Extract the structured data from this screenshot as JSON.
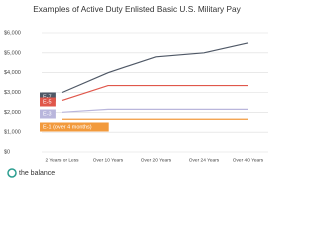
{
  "chart_data": {
    "type": "line",
    "title": "Examples of Active Duty Enlisted Basic U.S. Military Pay",
    "categories": [
      "2 Years or Less",
      "Over 10 Years",
      "Over 20 Years",
      "Over 24 Years",
      "Over 40 Years"
    ],
    "series": [
      {
        "name": "E-7",
        "color": "#4f5866",
        "values": [
          3000,
          4000,
          4800,
          5000,
          5500
        ]
      },
      {
        "name": "E-5",
        "color": "#e0574b",
        "values": [
          2600,
          3350,
          3350,
          3350,
          3350
        ]
      },
      {
        "name": "E-3",
        "color": "#b9b6dc",
        "values": [
          2000,
          2150,
          2150,
          2150,
          2150
        ]
      },
      {
        "name": "E-1 (over 4 months)",
        "color": "#f29a3d",
        "values": [
          1650,
          1650,
          1650,
          1650,
          1650
        ]
      }
    ],
    "ylim": [
      0,
      6000
    ],
    "yticks": [
      {
        "value": 0,
        "label": "$0"
      },
      {
        "value": 1000,
        "label": "$1,000"
      },
      {
        "value": 2000,
        "label": "$2,000"
      },
      {
        "value": 3000,
        "label": "$3,000"
      },
      {
        "value": 4000,
        "label": "$4,000"
      },
      {
        "value": 5000,
        "label": "$5,000"
      },
      {
        "value": 6000,
        "label": "$6,000"
      }
    ],
    "grid": true,
    "footer": "the balance"
  }
}
